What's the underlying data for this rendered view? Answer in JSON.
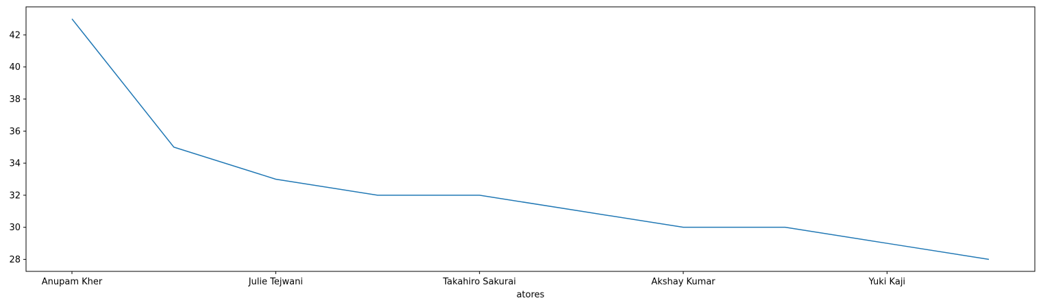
{
  "chart_data": {
    "type": "line",
    "title": "",
    "xlabel": "atores",
    "ylabel": "",
    "x": [
      "Anupam Kher",
      "",
      "Julie Tejwani",
      "",
      "Takahiro Sakurai",
      "",
      "Akshay Kumar",
      "",
      "Yuki Kaji",
      ""
    ],
    "x_tick_labels": [
      "Anupam Kher",
      "Julie Tejwani",
      "Takahiro Sakurai",
      "Akshay Kumar",
      "Yuki Kaji"
    ],
    "series": [
      {
        "values": [
          43,
          35,
          33,
          32,
          32,
          31,
          30,
          30,
          29,
          28
        ]
      }
    ],
    "ylim": [
      27.25,
      43.75
    ],
    "y_ticks": [
      28,
      30,
      32,
      34,
      36,
      38,
      40,
      42
    ],
    "grid": false,
    "legend": "none",
    "line_color": "#1f77b4"
  }
}
